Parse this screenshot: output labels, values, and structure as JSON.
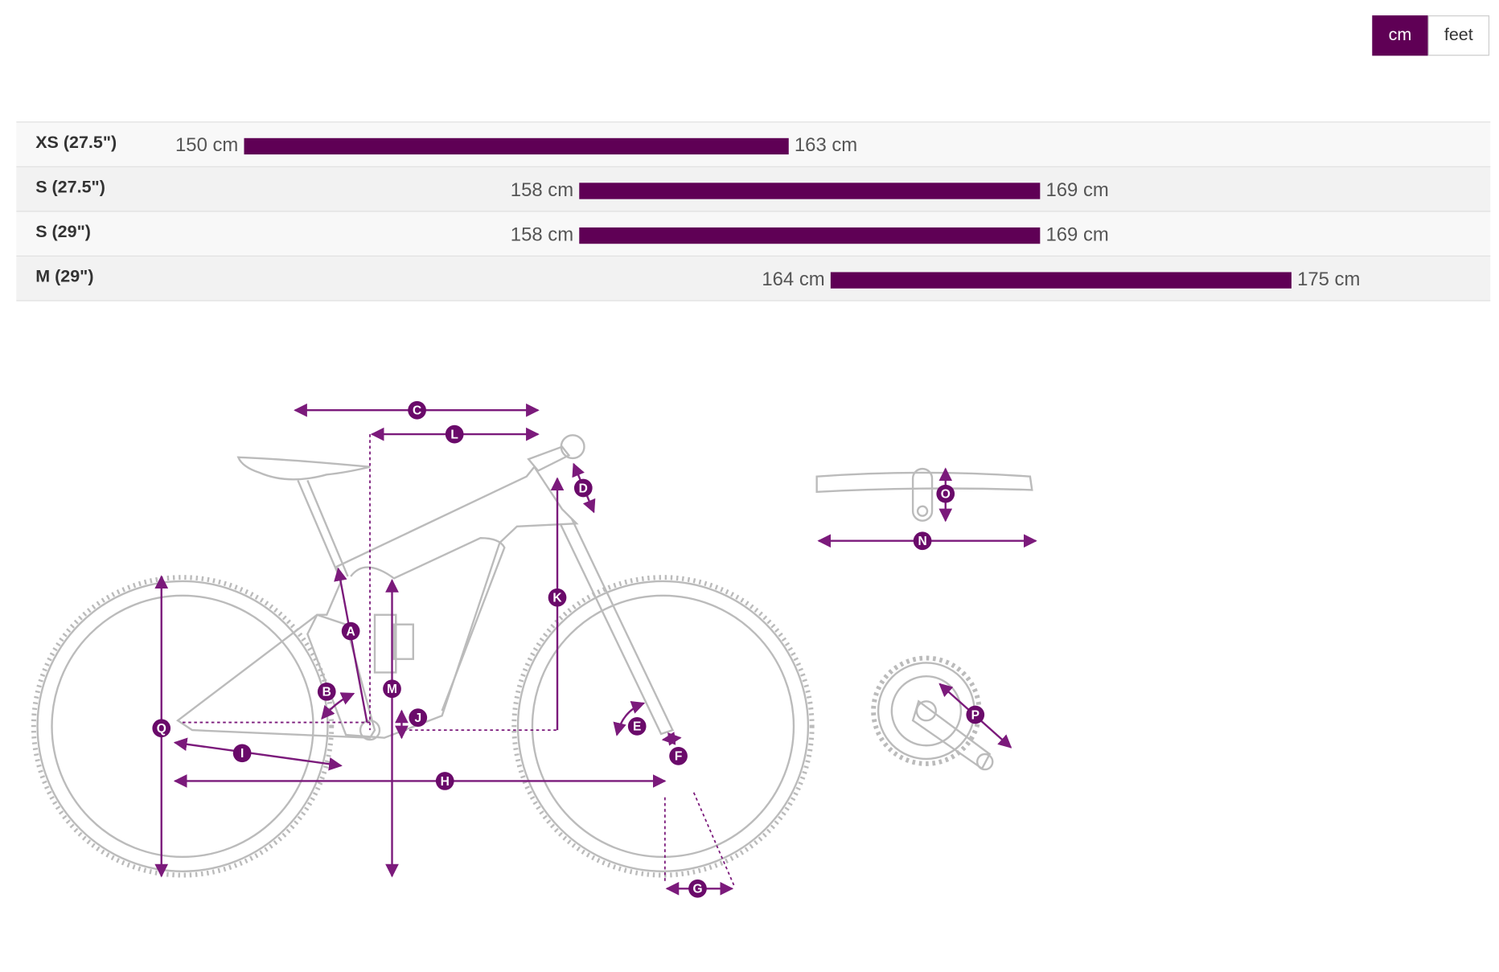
{
  "unit_toggle": {
    "options": [
      "cm",
      "feet"
    ]
  },
  "size_table": {
    "rows": [
      {
        "size": "XS (27.5\")",
        "low": 150,
        "high": 163,
        "low_label": "150 cm",
        "high_label": "163 cm"
      },
      {
        "size": "S (27.5\")",
        "low": 158,
        "high": 169,
        "low_label": "158 cm",
        "high_label": "169 cm"
      },
      {
        "size": "S (29\")",
        "low": 158,
        "high": 169,
        "low_label": "158 cm",
        "high_label": "169 cm"
      },
      {
        "size": "M (29\")",
        "low": 164,
        "high": 175,
        "low_label": "164 cm",
        "high_label": "175 cm"
      }
    ]
  },
  "diagram": {
    "labels": [
      "C",
      "L",
      "D",
      "K",
      "A",
      "B",
      "M",
      "J",
      "Q",
      "I",
      "H",
      "E",
      "F",
      "G",
      "O",
      "N",
      "P"
    ]
  }
}
